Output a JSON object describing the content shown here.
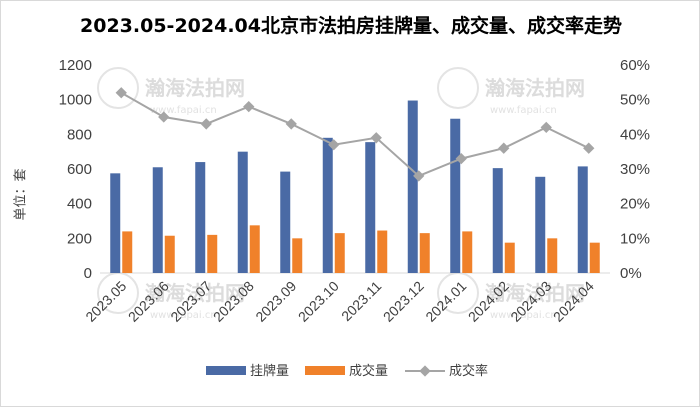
{
  "chart_data": {
    "type": "bar",
    "title": "2023.05-2024.04北京市法拍房挂牌量、成交量、成交率走势",
    "ylabel": "单位：套",
    "categories": [
      "2023.05",
      "2023.06",
      "2023.07",
      "2023.08",
      "2023.09",
      "2023.10",
      "2023.11",
      "2023.12",
      "2024.01",
      "2024.02",
      "2024.03",
      "2024.04"
    ],
    "ylim": [
      0,
      1200
    ],
    "yticks": [
      0,
      200,
      400,
      600,
      800,
      1000,
      1200
    ],
    "y2lim": [
      0,
      60
    ],
    "y2ticks": [
      "0%",
      "10%",
      "20%",
      "30%",
      "40%",
      "50%",
      "60%"
    ],
    "series": [
      {
        "name": "挂牌量",
        "type": "bar",
        "color": "#4a6aa5",
        "values": [
          575,
          610,
          640,
          700,
          585,
          780,
          755,
          995,
          890,
          605,
          555,
          615
        ]
      },
      {
        "name": "成交量",
        "type": "bar",
        "color": "#f0812a",
        "values": [
          240,
          215,
          220,
          275,
          200,
          230,
          245,
          230,
          240,
          175,
          200,
          175
        ]
      },
      {
        "name": "成交率",
        "type": "line",
        "axis": "right",
        "color": "#a5a5a5",
        "values": [
          52,
          45,
          43,
          48,
          43,
          37,
          39,
          28,
          33,
          36,
          42,
          36
        ]
      }
    ],
    "grid": false,
    "legend": "bottom"
  },
  "watermark": {
    "text": "瀚海法拍网",
    "url": "www.fapai.cn"
  }
}
